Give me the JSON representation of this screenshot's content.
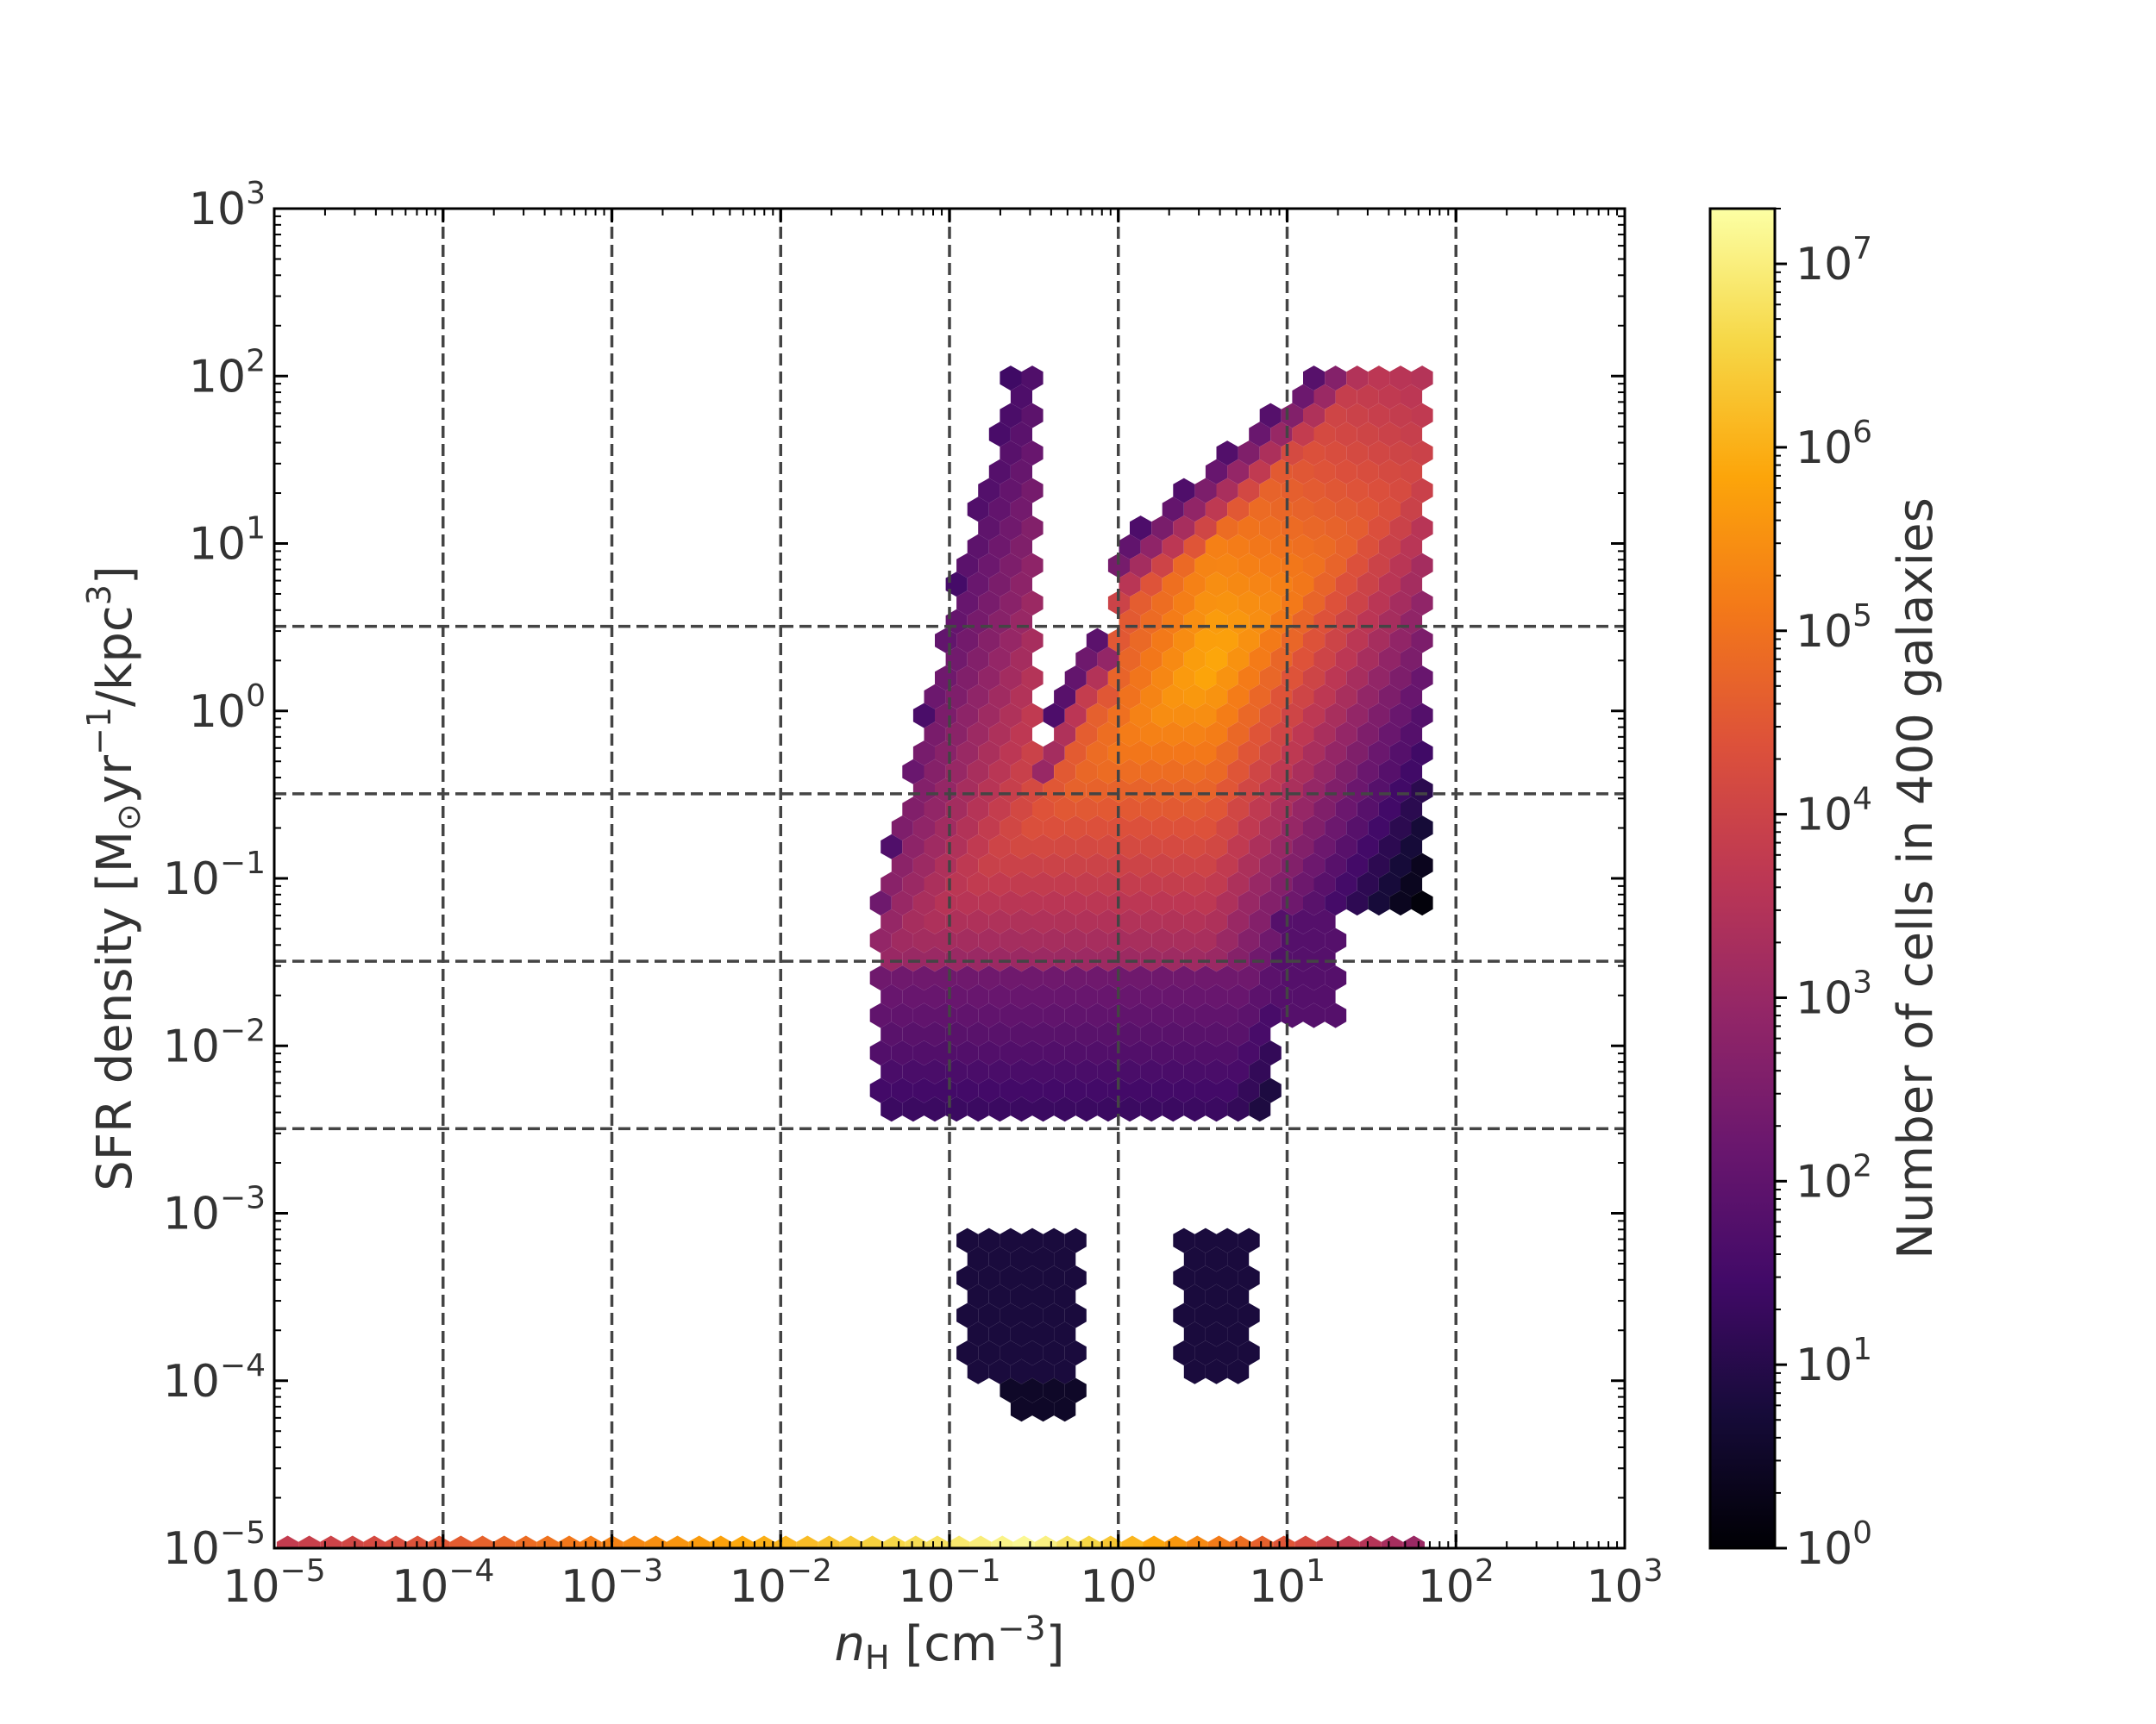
{
  "chart_data": {
    "type": "heatmap",
    "subtype": "hexbin",
    "x_scale": "log",
    "y_scale": "log",
    "xlim": [
      1e-05,
      1000
    ],
    "ylim": [
      1e-05,
      1000
    ],
    "x_ticks": [
      {
        "base": "10",
        "exp": "−5",
        "value": 1e-05
      },
      {
        "base": "10",
        "exp": "−4",
        "value": 0.0001
      },
      {
        "base": "10",
        "exp": "−3",
        "value": 0.001
      },
      {
        "base": "10",
        "exp": "−2",
        "value": 0.01
      },
      {
        "base": "10",
        "exp": "−1",
        "value": 0.1
      },
      {
        "base": "10",
        "exp": "0",
        "value": 1
      },
      {
        "base": "10",
        "exp": "1",
        "value": 10
      },
      {
        "base": "10",
        "exp": "2",
        "value": 100
      },
      {
        "base": "10",
        "exp": "3",
        "value": 1000
      }
    ],
    "y_ticks": [
      {
        "base": "10",
        "exp": "−5",
        "value": 1e-05
      },
      {
        "base": "10",
        "exp": "−4",
        "value": 0.0001
      },
      {
        "base": "10",
        "exp": "−3",
        "value": 0.001
      },
      {
        "base": "10",
        "exp": "−2",
        "value": 0.01
      },
      {
        "base": "10",
        "exp": "−1",
        "value": 0.1
      },
      {
        "base": "10",
        "exp": "0",
        "value": 1
      },
      {
        "base": "10",
        "exp": "1",
        "value": 10
      },
      {
        "base": "10",
        "exp": "2",
        "value": 100
      },
      {
        "base": "10",
        "exp": "3",
        "value": 1000
      }
    ],
    "xlabel": {
      "italic": "n",
      "sub": "H",
      "rest": " [cm",
      "sup": "−3",
      "end": "]"
    },
    "ylabel": {
      "a": "SFR density [M",
      "sub": "⊙",
      "b": "yr",
      "sup1": "−1",
      "c": "/kpc",
      "sup2": "3",
      "d": "]"
    },
    "vlines_x": [
      0.0001,
      0.001,
      0.01,
      0.1,
      1,
      10,
      100
    ],
    "hlines_y": [
      3.2,
      0.32,
      0.032,
      0.0032
    ],
    "grid": "dashed reference lines",
    "colormap": "inferno",
    "colorbar": {
      "label": "Number of cells in 400 galaxies",
      "scale": "log",
      "range": [
        1,
        20000000
      ],
      "ticks": [
        {
          "base": "10",
          "exp": "0",
          "value": 1
        },
        {
          "base": "10",
          "exp": "1",
          "value": 10
        },
        {
          "base": "10",
          "exp": "2",
          "value": 100
        },
        {
          "base": "10",
          "exp": "3",
          "value": 1000
        },
        {
          "base": "10",
          "exp": "4",
          "value": 10000
        },
        {
          "base": "10",
          "exp": "5",
          "value": 100000
        },
        {
          "base": "10",
          "exp": "6",
          "value": 1000000
        },
        {
          "base": "10",
          "exp": "7",
          "value": 10000000
        }
      ]
    },
    "bottom_row": {
      "y": 1e-05,
      "x_range": [
        1.2e-05,
        60
      ],
      "peak_x": 0.3,
      "left_log10_count": 3.8,
      "peak_log10_count": 7.2,
      "right_log10_count": 3.0
    },
    "density_regions": [
      {
        "log_nH": [
          -1.4,
          1.8
        ],
        "log_sfr": [
          -4.0,
          2.0
        ],
        "description": "main diagonal band from low density/low SFR to high density/high SFR"
      },
      {
        "peak_log_nH": 0.5,
        "peak_log_sfr": 0.2,
        "peak_log10_count": 6.0
      }
    ]
  }
}
